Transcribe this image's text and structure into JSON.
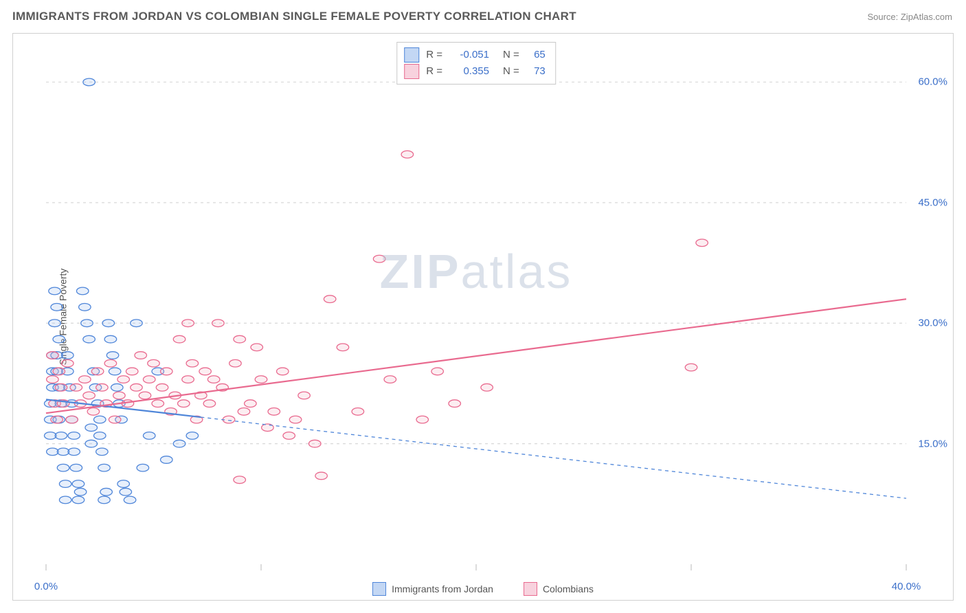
{
  "header": {
    "title": "IMMIGRANTS FROM JORDAN VS COLOMBIAN SINGLE FEMALE POVERTY CORRELATION CHART",
    "source_prefix": "Source: ",
    "source_name": "ZipAtlas.com"
  },
  "ylabel": "Single Female Poverty",
  "watermark": {
    "zip": "ZIP",
    "atlas": "atlas"
  },
  "chart": {
    "type": "scatter",
    "xlim": [
      0,
      40
    ],
    "ylim": [
      0,
      65
    ],
    "background_color": "#ffffff",
    "grid_color": "#d8d8d8",
    "axis_label_color": "#3b6fc9",
    "axis_label_fontsize": 15,
    "x_ticks": [
      0,
      10,
      20,
      30,
      40
    ],
    "x_tick_labels": [
      "0.0%",
      "",
      "",
      "",
      "40.0%"
    ],
    "y_gridlines": [
      15,
      30,
      45,
      60
    ],
    "y_tick_labels": [
      "15.0%",
      "30.0%",
      "45.0%",
      "60.0%"
    ],
    "marker_radius": 7,
    "marker_stroke_width": 1.3,
    "marker_fill_opacity": 0.25,
    "line_width_solid": 2.2,
    "line_width_dash": 1.3,
    "dash_pattern": "5,5",
    "series": [
      {
        "name": "Immigrants from Jordan",
        "color": "#4f86d9",
        "fill": "#9fbef0",
        "R": "-0.051",
        "N": "65",
        "trend_solid": {
          "x1": 0,
          "y1": 20.5,
          "x2": 7.2,
          "y2": 18.3
        },
        "trend_dash": {
          "x1": 7.2,
          "y1": 18.3,
          "x2": 40,
          "y2": 8.2
        },
        "points": [
          [
            0.3,
            24
          ],
          [
            0.3,
            22
          ],
          [
            0.2,
            20
          ],
          [
            0.2,
            18
          ],
          [
            0.3,
            26
          ],
          [
            0.2,
            16
          ],
          [
            0.3,
            14
          ],
          [
            0.4,
            34
          ],
          [
            0.5,
            32
          ],
          [
            0.4,
            30
          ],
          [
            0.6,
            28
          ],
          [
            0.5,
            26
          ],
          [
            0.5,
            24
          ],
          [
            0.6,
            22
          ],
          [
            0.7,
            20
          ],
          [
            0.6,
            18
          ],
          [
            0.7,
            16
          ],
          [
            0.8,
            14
          ],
          [
            0.8,
            12
          ],
          [
            0.9,
            10
          ],
          [
            0.9,
            8
          ],
          [
            1.0,
            26
          ],
          [
            1.0,
            24
          ],
          [
            1.1,
            22
          ],
          [
            1.2,
            20
          ],
          [
            1.2,
            18
          ],
          [
            1.3,
            16
          ],
          [
            1.3,
            14
          ],
          [
            1.4,
            12
          ],
          [
            1.5,
            10
          ],
          [
            1.5,
            8
          ],
          [
            1.6,
            9
          ],
          [
            1.7,
            34
          ],
          [
            1.8,
            32
          ],
          [
            1.9,
            30
          ],
          [
            2.0,
            28
          ],
          [
            2.1,
            17
          ],
          [
            2.1,
            15
          ],
          [
            2.2,
            24
          ],
          [
            2.3,
            22
          ],
          [
            2.4,
            20
          ],
          [
            2.5,
            18
          ],
          [
            2.5,
            16
          ],
          [
            2.6,
            14
          ],
          [
            2.7,
            12
          ],
          [
            2.7,
            8
          ],
          [
            2.8,
            9
          ],
          [
            2.9,
            30
          ],
          [
            3.0,
            28
          ],
          [
            3.1,
            26
          ],
          [
            3.2,
            24
          ],
          [
            3.3,
            22
          ],
          [
            3.4,
            20
          ],
          [
            3.5,
            18
          ],
          [
            3.6,
            10
          ],
          [
            3.7,
            9
          ],
          [
            3.9,
            8
          ],
          [
            4.2,
            30
          ],
          [
            4.5,
            12
          ],
          [
            4.8,
            16
          ],
          [
            5.2,
            24
          ],
          [
            5.6,
            13
          ],
          [
            6.2,
            15
          ],
          [
            6.8,
            16
          ],
          [
            2.0,
            60
          ]
        ]
      },
      {
        "name": "Colombians",
        "color": "#e96a8f",
        "fill": "#f5b6c8",
        "R": "0.355",
        "N": "73",
        "trend_solid": {
          "x1": 0,
          "y1": 18.8,
          "x2": 40,
          "y2": 33.0
        },
        "trend_dash": null,
        "points": [
          [
            0.3,
            23
          ],
          [
            0.3,
            26
          ],
          [
            0.4,
            20
          ],
          [
            0.5,
            18
          ],
          [
            0.6,
            24
          ],
          [
            0.7,
            22
          ],
          [
            0.8,
            20
          ],
          [
            1.0,
            25
          ],
          [
            1.2,
            18
          ],
          [
            1.4,
            22
          ],
          [
            1.6,
            20
          ],
          [
            1.8,
            23
          ],
          [
            2.0,
            21
          ],
          [
            2.2,
            19
          ],
          [
            2.4,
            24
          ],
          [
            2.6,
            22
          ],
          [
            2.8,
            20
          ],
          [
            3.0,
            25
          ],
          [
            3.2,
            18
          ],
          [
            3.4,
            21
          ],
          [
            3.6,
            23
          ],
          [
            3.8,
            20
          ],
          [
            4.0,
            24
          ],
          [
            4.2,
            22
          ],
          [
            4.4,
            26
          ],
          [
            4.6,
            21
          ],
          [
            4.8,
            23
          ],
          [
            5.0,
            25
          ],
          [
            5.2,
            20
          ],
          [
            5.4,
            22
          ],
          [
            5.6,
            24
          ],
          [
            5.8,
            19
          ],
          [
            6.0,
            21
          ],
          [
            6.2,
            28
          ],
          [
            6.4,
            20
          ],
          [
            6.6,
            23
          ],
          [
            6.8,
            25
          ],
          [
            7.0,
            18
          ],
          [
            7.2,
            21
          ],
          [
            7.4,
            24
          ],
          [
            7.6,
            20
          ],
          [
            7.8,
            23
          ],
          [
            8.0,
            30
          ],
          [
            8.2,
            22
          ],
          [
            8.5,
            18
          ],
          [
            8.8,
            25
          ],
          [
            9.0,
            28
          ],
          [
            9.2,
            19
          ],
          [
            9.5,
            20
          ],
          [
            9.8,
            27
          ],
          [
            10.0,
            23
          ],
          [
            10.3,
            17
          ],
          [
            10.6,
            19
          ],
          [
            11.0,
            24
          ],
          [
            11.3,
            16
          ],
          [
            11.6,
            18
          ],
          [
            12.0,
            21
          ],
          [
            12.5,
            15
          ],
          [
            12.8,
            11
          ],
          [
            13.2,
            33
          ],
          [
            13.8,
            27
          ],
          [
            14.5,
            19
          ],
          [
            15.5,
            38
          ],
          [
            16.0,
            23
          ],
          [
            16.8,
            51
          ],
          [
            17.5,
            18
          ],
          [
            18.2,
            24
          ],
          [
            19.0,
            20
          ],
          [
            20.5,
            22
          ],
          [
            9.0,
            10.5
          ],
          [
            30.5,
            40
          ],
          [
            30.0,
            24.5
          ],
          [
            6.6,
            30
          ]
        ]
      }
    ]
  },
  "bottom_legend": [
    {
      "label": "Immigrants from Jordan",
      "stroke": "#4f86d9",
      "fill": "#c3d7f4"
    },
    {
      "label": "Colombians",
      "stroke": "#e96a8f",
      "fill": "#f8d2de"
    }
  ],
  "corr_legend": {
    "rows": [
      {
        "stroke": "#4f86d9",
        "fill": "#c3d7f4",
        "R_label": "R =",
        "R": "-0.051",
        "N_label": "N =",
        "N": "65"
      },
      {
        "stroke": "#e96a8f",
        "fill": "#f8d2de",
        "R_label": "R =",
        "R": "0.355",
        "N_label": "N =",
        "N": "73"
      }
    ]
  }
}
